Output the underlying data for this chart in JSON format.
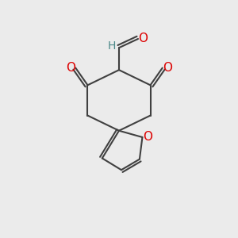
{
  "bg_color": "#ebebeb",
  "bond_color": "#404040",
  "oxygen_color": "#dd0000",
  "carbon_color": "#4a8888",
  "line_width": 1.5,
  "dbo": 0.12,
  "figsize": [
    3.0,
    3.0
  ],
  "dpi": 100,
  "xlim": [
    0,
    10
  ],
  "ylim": [
    0,
    10
  ]
}
